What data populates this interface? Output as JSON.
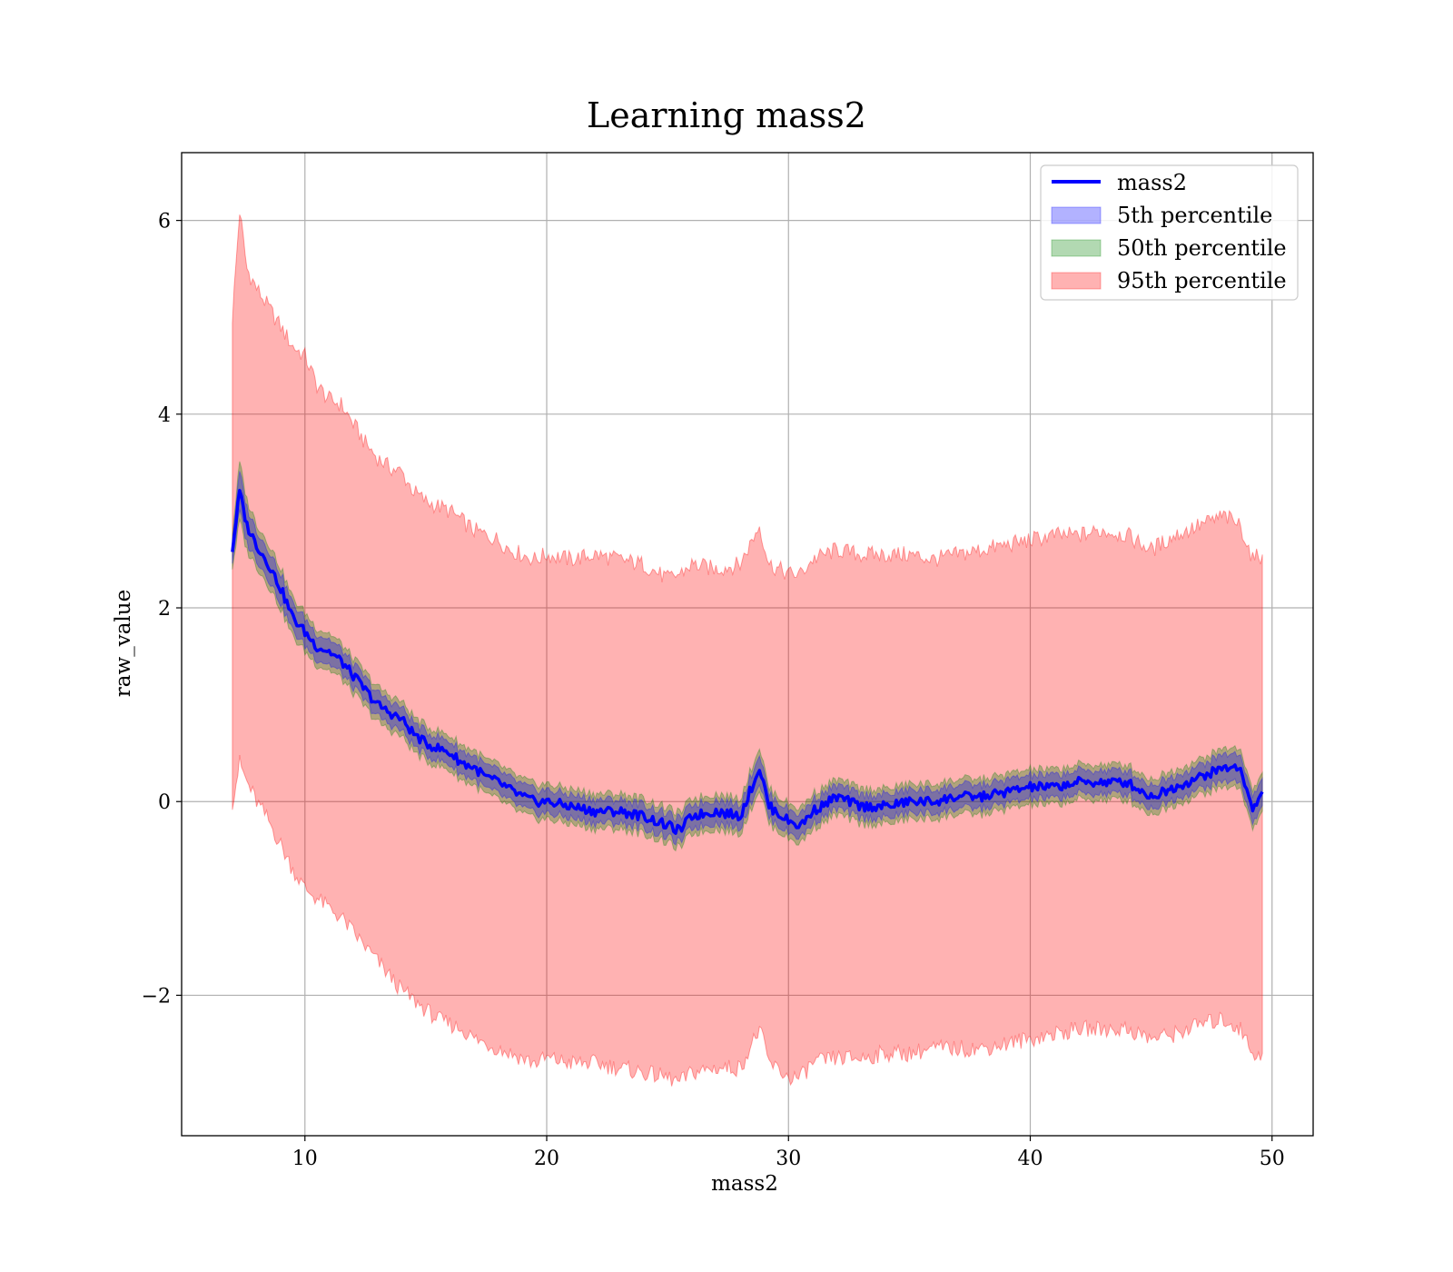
{
  "colors": {
    "line": "#0000ff",
    "p5": "#0000ff",
    "p50": "#008000",
    "p95": "#ff0000",
    "grid": "#b0b0b0",
    "axes": "#000000"
  },
  "chart_data": {
    "type": "line",
    "title": "Learning mass2",
    "xlabel": "mass2",
    "ylabel": "raw_value",
    "xlim": [
      4.9,
      51.7
    ],
    "ylim": [
      -3.45,
      6.7
    ],
    "xticks": [
      10,
      20,
      30,
      40,
      50
    ],
    "xtick_labels": [
      "10",
      "20",
      "30",
      "40",
      "50"
    ],
    "yticks": [
      -2,
      0,
      2,
      4,
      6
    ],
    "ytick_labels": [
      "−2",
      "0",
      "2",
      "4",
      "6"
    ],
    "grid": true,
    "legend_position": "top-right",
    "legend": [
      "mass2",
      "5th percentile",
      "50th percentile",
      "95th percentile"
    ],
    "series": [
      {
        "name": "mass2",
        "kind": "line",
        "x": [
          7.0,
          7.3,
          7.6,
          8.0,
          8.5,
          9.0,
          9.5,
          10.0,
          10.5,
          11.0,
          11.5,
          12.0,
          12.5,
          13.0,
          13.5,
          14.0,
          14.5,
          15.0,
          15.5,
          16.0,
          16.5,
          17.0,
          17.5,
          18.0,
          18.5,
          19.0,
          19.5,
          20.0,
          21.0,
          22.0,
          23.0,
          24.0,
          25.0,
          25.5,
          26.0,
          27.0,
          28.0,
          28.8,
          29.2,
          30.0,
          30.5,
          31.0,
          32.0,
          33.0,
          34.0,
          35.0,
          36.0,
          37.0,
          38.0,
          39.0,
          40.0,
          41.0,
          42.0,
          43.0,
          44.0,
          45.0,
          46.0,
          47.0,
          48.0,
          48.7,
          49.2,
          49.6
        ],
        "y": [
          2.6,
          3.2,
          2.85,
          2.65,
          2.45,
          2.2,
          1.9,
          1.75,
          1.6,
          1.55,
          1.45,
          1.3,
          1.15,
          1.0,
          0.92,
          0.85,
          0.7,
          0.6,
          0.55,
          0.5,
          0.4,
          0.35,
          0.25,
          0.2,
          0.12,
          0.05,
          0.0,
          0.0,
          -0.05,
          -0.1,
          -0.1,
          -0.15,
          -0.25,
          -0.3,
          -0.15,
          -0.1,
          -0.15,
          0.35,
          -0.05,
          -0.2,
          -0.25,
          -0.1,
          0.05,
          -0.05,
          -0.05,
          0.0,
          0.0,
          0.05,
          0.05,
          0.1,
          0.15,
          0.15,
          0.2,
          0.2,
          0.2,
          0.05,
          0.15,
          0.25,
          0.35,
          0.35,
          -0.1,
          0.1
        ]
      },
      {
        "name": "5th percentile",
        "kind": "band",
        "half_width": [
          0.12,
          0.2,
          0.18,
          0.15,
          0.15,
          0.15,
          0.14,
          0.14,
          0.13,
          0.13,
          0.12,
          0.12,
          0.12,
          0.12,
          0.12,
          0.12,
          0.12,
          0.12,
          0.12,
          0.12,
          0.12,
          0.12,
          0.12,
          0.12,
          0.12,
          0.12,
          0.12,
          0.12,
          0.12,
          0.12,
          0.12,
          0.12,
          0.12,
          0.12,
          0.12,
          0.12,
          0.12,
          0.15,
          0.12,
          0.12,
          0.12,
          0.12,
          0.12,
          0.12,
          0.12,
          0.12,
          0.12,
          0.12,
          0.12,
          0.12,
          0.12,
          0.12,
          0.12,
          0.12,
          0.12,
          0.12,
          0.12,
          0.12,
          0.14,
          0.14,
          0.14,
          0.14
        ]
      },
      {
        "name": "50th percentile",
        "kind": "band",
        "half_width": [
          0.18,
          0.3,
          0.26,
          0.22,
          0.22,
          0.21,
          0.2,
          0.2,
          0.19,
          0.19,
          0.18,
          0.18,
          0.18,
          0.18,
          0.18,
          0.18,
          0.18,
          0.18,
          0.18,
          0.18,
          0.18,
          0.18,
          0.18,
          0.18,
          0.18,
          0.18,
          0.18,
          0.18,
          0.18,
          0.18,
          0.18,
          0.18,
          0.18,
          0.18,
          0.18,
          0.18,
          0.18,
          0.22,
          0.18,
          0.18,
          0.18,
          0.18,
          0.18,
          0.18,
          0.18,
          0.18,
          0.18,
          0.18,
          0.18,
          0.18,
          0.18,
          0.18,
          0.18,
          0.18,
          0.18,
          0.18,
          0.18,
          0.18,
          0.2,
          0.2,
          0.2,
          0.2
        ]
      },
      {
        "name": "95th percentile",
        "kind": "band",
        "upper": [
          5.0,
          6.1,
          5.5,
          5.3,
          5.1,
          4.9,
          4.7,
          4.6,
          4.3,
          4.15,
          4.1,
          3.9,
          3.7,
          3.55,
          3.45,
          3.4,
          3.2,
          3.1,
          3.05,
          3.0,
          2.9,
          2.8,
          2.75,
          2.7,
          2.6,
          2.55,
          2.5,
          2.55,
          2.5,
          2.55,
          2.5,
          2.45,
          2.3,
          2.35,
          2.45,
          2.4,
          2.45,
          2.85,
          2.45,
          2.35,
          2.35,
          2.5,
          2.6,
          2.55,
          2.55,
          2.55,
          2.5,
          2.55,
          2.6,
          2.65,
          2.7,
          2.75,
          2.75,
          2.8,
          2.75,
          2.6,
          2.75,
          2.85,
          2.95,
          2.85,
          2.5,
          2.55
        ],
        "lower": [
          0.0,
          0.4,
          0.2,
          0.0,
          -0.2,
          -0.45,
          -0.7,
          -0.9,
          -1.0,
          -1.1,
          -1.2,
          -1.35,
          -1.5,
          -1.65,
          -1.8,
          -1.95,
          -2.05,
          -2.15,
          -2.25,
          -2.3,
          -2.35,
          -2.45,
          -2.5,
          -2.55,
          -2.6,
          -2.65,
          -2.7,
          -2.65,
          -2.7,
          -2.7,
          -2.75,
          -2.8,
          -2.85,
          -2.9,
          -2.8,
          -2.75,
          -2.75,
          -2.35,
          -2.7,
          -2.85,
          -2.85,
          -2.7,
          -2.65,
          -2.65,
          -2.6,
          -2.6,
          -2.55,
          -2.55,
          -2.55,
          -2.5,
          -2.45,
          -2.4,
          -2.35,
          -2.35,
          -2.35,
          -2.45,
          -2.4,
          -2.3,
          -2.25,
          -2.35,
          -2.6,
          -2.6
        ]
      }
    ]
  }
}
